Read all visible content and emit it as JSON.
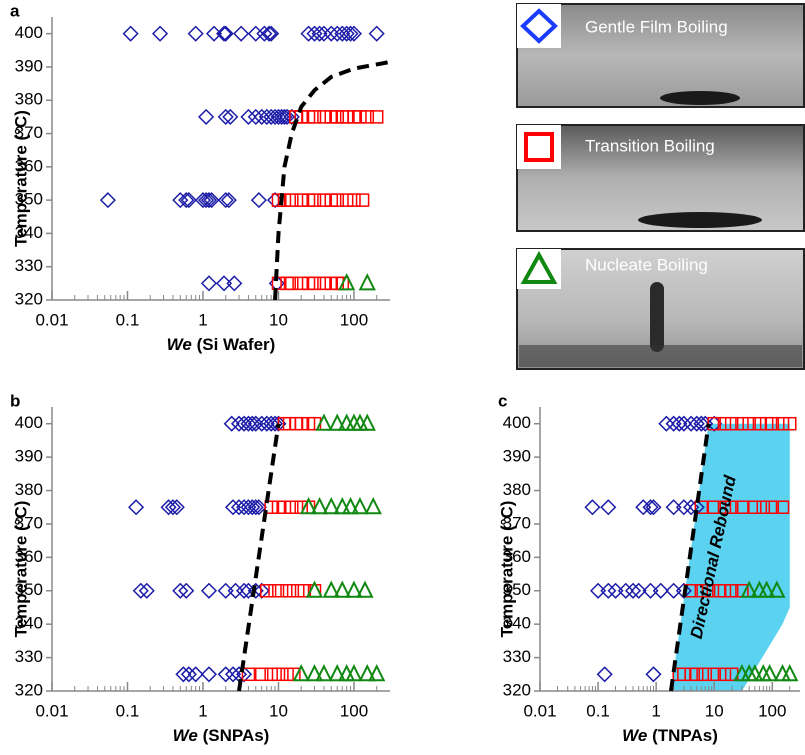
{
  "chart_data": [
    {
      "type": "scatter",
      "panel": "a",
      "x_label_var": "We",
      "x_label": "(Si Wafer)",
      "y_label": "Temperature (°C)",
      "xscale": "log",
      "xlim": [
        0.01,
        300
      ],
      "xticks": [
        0.01,
        0.1,
        1,
        10,
        100
      ],
      "minor_ticks": true,
      "ylim": [
        320,
        405
      ],
      "yticks": [
        320,
        330,
        340,
        350,
        360,
        370,
        380,
        390,
        400
      ],
      "series": [
        {
          "name": "Gentle Film Boiling",
          "marker": "diamond",
          "color": "#1c1ca8",
          "x": [
            0.11,
            0.27,
            0.8,
            1.4,
            1.9,
            2.0,
            3.2,
            5,
            6.5,
            7.5,
            8,
            25,
            30,
            35,
            40,
            50,
            60,
            70,
            80,
            90,
            100,
            200,
            1.1,
            2.0,
            2.3,
            4,
            5,
            6,
            7,
            8,
            9,
            10,
            11,
            12,
            13,
            15,
            0.055,
            0.5,
            0.6,
            0.65,
            1.0,
            1.1,
            1.2,
            1.3,
            2.0,
            2.2,
            5.5,
            9,
            1.2,
            1.9,
            2.6,
            9.5
          ],
          "values": [
            400,
            400,
            400,
            400,
            400,
            400,
            400,
            400,
            400,
            400,
            400,
            400,
            400,
            400,
            400,
            400,
            400,
            400,
            400,
            400,
            400,
            400,
            375,
            375,
            375,
            375,
            375,
            375,
            375,
            375,
            375,
            375,
            375,
            375,
            375,
            375,
            350,
            350,
            350,
            350,
            350,
            350,
            350,
            350,
            350,
            350,
            350,
            350,
            325,
            325,
            325,
            325
          ]
        },
        {
          "name": "Transition Boiling",
          "marker": "square",
          "color": "#ff0000",
          "x": [
            17,
            20,
            25,
            30,
            40,
            50,
            60,
            70,
            80,
            100,
            120,
            150,
            200,
            10,
            12,
            15,
            20,
            25,
            30,
            40,
            50,
            60,
            80,
            100,
            130,
            10,
            13,
            15,
            20,
            25,
            30,
            40,
            50,
            60,
            70
          ],
          "values": [
            375,
            375,
            375,
            375,
            375,
            375,
            375,
            375,
            375,
            375,
            375,
            375,
            375,
            350,
            350,
            350,
            350,
            350,
            350,
            350,
            350,
            350,
            350,
            350,
            350,
            325,
            325,
            325,
            325,
            325,
            325,
            325,
            325,
            325,
            325
          ]
        },
        {
          "name": "Nucleate Boiling",
          "marker": "triangle",
          "color": "#118811",
          "x": [
            80,
            150
          ],
          "values": [
            325,
            325
          ]
        },
        {
          "marker": "line",
          "color": "#000000",
          "x": [
            9,
            10,
            12,
            15,
            20,
            30,
            50,
            100,
            300
          ],
          "values": [
            320,
            340,
            360,
            370,
            378,
            383,
            387,
            389.5,
            391.5
          ]
        }
      ]
    },
    {
      "type": "scatter",
      "panel": "b",
      "x_label_var": "We",
      "x_label": "(SNPAs)",
      "y_label": "Temperature (°C)",
      "xscale": "log",
      "xlim": [
        0.01,
        300
      ],
      "xticks": [
        0.01,
        0.1,
        1,
        10,
        100
      ],
      "minor_ticks": true,
      "ylim": [
        320,
        405
      ],
      "yticks": [
        320,
        330,
        340,
        350,
        360,
        370,
        380,
        390,
        400
      ],
      "series": [
        {
          "marker": "diamond",
          "color": "#1c1ca8",
          "x": [
            2.4,
            3,
            3.5,
            4,
            4.5,
            5,
            6,
            7,
            8,
            9,
            10,
            0.13,
            0.35,
            0.4,
            0.45,
            2.5,
            3,
            3.5,
            4,
            4.5,
            5,
            5.5,
            0.15,
            0.18,
            0.5,
            0.6,
            1.2,
            2,
            2.7,
            3.5,
            4,
            5,
            6,
            0.55,
            0.65,
            0.8,
            1.2,
            2,
            2.5,
            3,
            3.5
          ],
          "values": [
            400,
            400,
            400,
            400,
            400,
            400,
            400,
            400,
            400,
            400,
            400,
            375,
            375,
            375,
            375,
            375,
            375,
            375,
            375,
            375,
            375,
            375,
            350,
            350,
            350,
            350,
            350,
            350,
            350,
            350,
            350,
            350,
            350,
            325,
            325,
            325,
            325,
            325,
            325,
            325,
            325
          ]
        },
        {
          "marker": "square",
          "color": "#ff0000",
          "x": [
            12,
            14,
            17,
            20,
            25,
            30,
            8,
            10,
            12,
            15,
            20,
            25,
            7,
            9,
            11,
            14,
            18,
            22,
            30,
            4,
            6,
            8,
            10,
            13,
            16
          ],
          "values": [
            400,
            400,
            400,
            400,
            400,
            400,
            375,
            375,
            375,
            375,
            375,
            375,
            350,
            350,
            350,
            350,
            350,
            350,
            350,
            325,
            325,
            325,
            325,
            325,
            325
          ]
        },
        {
          "marker": "triangle",
          "color": "#118811",
          "x": [
            40,
            60,
            80,
            100,
            120,
            150,
            25,
            35,
            50,
            70,
            90,
            120,
            180,
            30,
            50,
            70,
            100,
            140,
            20,
            30,
            40,
            60,
            80,
            100,
            150,
            200
          ],
          "values": [
            400,
            400,
            400,
            400,
            400,
            400,
            375,
            375,
            375,
            375,
            375,
            375,
            375,
            350,
            350,
            350,
            350,
            350,
            325,
            325,
            325,
            325,
            325,
            325,
            325,
            325
          ]
        },
        {
          "marker": "line",
          "color": "#000000",
          "x": [
            3,
            10
          ],
          "values": [
            320,
            400
          ]
        }
      ]
    },
    {
      "type": "scatter",
      "panel": "c",
      "x_label_var": "We",
      "x_label": "(TNPAs)",
      "y_label": "Temperature (°C)",
      "xscale": "log",
      "xlim": [
        0.01,
        300
      ],
      "xticks": [
        0.01,
        0.1,
        1,
        10,
        100
      ],
      "minor_ticks": true,
      "ylim": [
        320,
        405
      ],
      "yticks": [
        320,
        330,
        340,
        350,
        360,
        370,
        380,
        390,
        400
      ],
      "region": {
        "x": [
          1.8,
          8,
          200,
          200,
          150,
          30
        ],
        "values": [
          320,
          400,
          400,
          345,
          340,
          320
        ],
        "color": "#5ad2f0"
      },
      "annotation": "Directional Rebound",
      "series": [
        {
          "marker": "diamond",
          "color": "#1c1ca8",
          "x": [
            1.5,
            2,
            2.5,
            3,
            4,
            5,
            6,
            7,
            10,
            0.08,
            0.15,
            0.6,
            0.8,
            0.9,
            2,
            3,
            4,
            5,
            0.1,
            0.15,
            0.2,
            0.3,
            0.4,
            0.5,
            0.8,
            1.2,
            2,
            3,
            0.13,
            0.9
          ],
          "values": [
            400,
            400,
            400,
            400,
            400,
            400,
            400,
            400,
            400,
            375,
            375,
            375,
            375,
            375,
            375,
            375,
            375,
            375,
            350,
            350,
            350,
            350,
            350,
            350,
            350,
            350,
            350,
            350,
            325,
            325
          ]
        },
        {
          "marker": "square",
          "color": "#ff0000",
          "x": [
            10,
            15,
            20,
            30,
            40,
            60,
            80,
            100,
            150,
            200,
            6,
            10,
            15,
            20,
            30,
            50,
            70,
            100,
            150,
            4,
            6,
            8,
            12,
            15,
            20,
            30,
            2.5,
            3,
            4,
            5,
            7,
            10,
            15,
            20
          ],
          "values": [
            400,
            400,
            400,
            400,
            400,
            400,
            400,
            400,
            400,
            400,
            375,
            375,
            375,
            375,
            375,
            375,
            375,
            375,
            375,
            350,
            350,
            350,
            350,
            350,
            350,
            350,
            325,
            325,
            325,
            325,
            325,
            325,
            325,
            325
          ]
        },
        {
          "marker": "triangle",
          "color": "#118811",
          "x": [
            40,
            60,
            80,
            120,
            30,
            40,
            50,
            70,
            90,
            150,
            200
          ],
          "values": [
            350,
            350,
            350,
            350,
            325,
            325,
            325,
            325,
            325,
            325,
            325
          ]
        },
        {
          "marker": "line",
          "color": "#000000",
          "x": [
            1.8,
            8
          ],
          "values": [
            320,
            400
          ]
        }
      ]
    }
  ]
}
